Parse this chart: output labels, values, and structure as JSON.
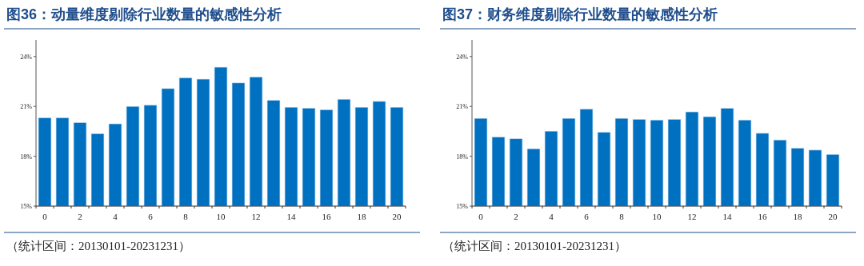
{
  "chart_data": [
    {
      "type": "bar",
      "title": "图36：动量维度剔除行业数量的敏感性分析",
      "categories": [
        "0",
        null,
        "2",
        null,
        "4",
        null,
        "6",
        null,
        "8",
        null,
        "10",
        null,
        "12",
        null,
        "14",
        null,
        "16",
        null,
        "18",
        null,
        "20"
      ],
      "values": [
        20.31,
        20.31,
        20.02,
        19.36,
        19.95,
        21.0,
        21.07,
        22.07,
        22.72,
        22.64,
        23.36,
        22.41,
        22.77,
        21.36,
        20.95,
        20.89,
        20.8,
        21.43,
        20.95,
        21.3,
        20.95
      ],
      "color": "#0070c0",
      "ylim": [
        15,
        25
      ],
      "yticks": [
        {
          "value": 15,
          "label": "15%"
        },
        {
          "value": 18,
          "label": "18%"
        },
        {
          "value": 21,
          "label": "21%"
        },
        {
          "value": 24,
          "label": "24%"
        }
      ],
      "annotations": [
        "（统计区间：20130101-20231231）"
      ]
    },
    {
      "type": "bar",
      "title": "图37：财务维度剔除行业数量的敏感性分析",
      "categories": [
        "0",
        null,
        "2",
        null,
        "4",
        null,
        "6",
        null,
        "8",
        null,
        "10",
        null,
        "12",
        null,
        "14",
        null,
        "16",
        null,
        "18",
        null,
        "20"
      ],
      "values": [
        20.28,
        19.15,
        19.05,
        18.45,
        19.51,
        20.28,
        20.83,
        19.44,
        20.28,
        20.22,
        20.18,
        20.22,
        20.67,
        20.38,
        20.88,
        20.18,
        19.38,
        18.98,
        18.48,
        18.37,
        18.11
      ],
      "color": "#0070c0",
      "ylim": [
        15,
        25
      ],
      "yticks": [
        {
          "value": 15,
          "label": "15%"
        },
        {
          "value": 18,
          "label": "18%"
        },
        {
          "value": 21,
          "label": "21%"
        },
        {
          "value": 24,
          "label": "24%"
        }
      ],
      "annotations": [
        "（统计区间：20130101-20231231）"
      ]
    }
  ]
}
